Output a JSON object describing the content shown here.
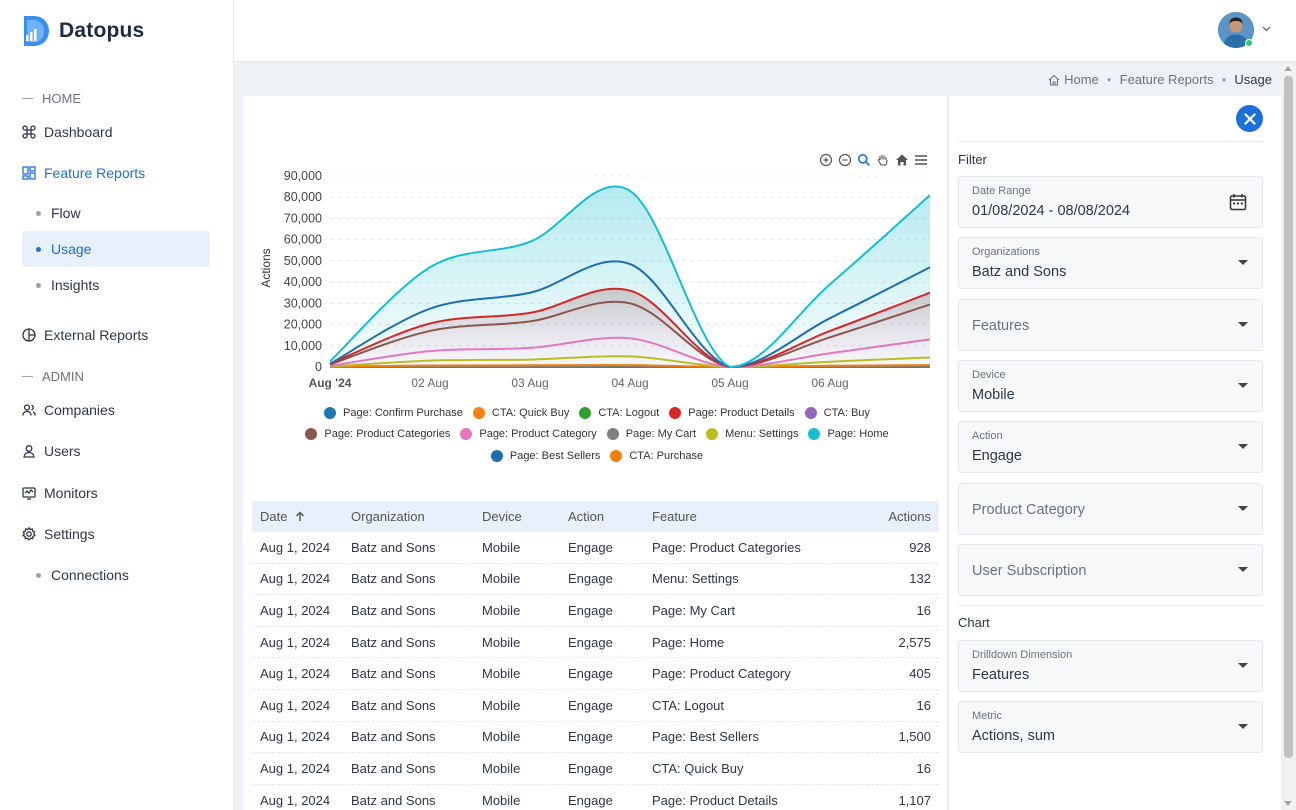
{
  "app": {
    "name": "Datopus"
  },
  "sidebar": {
    "home_section": "HOME",
    "admin_section": "ADMIN",
    "dashboard": "Dashboard",
    "feature_reports": "Feature Reports",
    "flow": "Flow",
    "usage": "Usage",
    "insights": "Insights",
    "external_reports": "External Reports",
    "companies": "Companies",
    "users": "Users",
    "monitors": "Monitors",
    "settings": "Settings",
    "connections": "Connections"
  },
  "breadcrumb": {
    "home": "Home",
    "section": "Feature Reports",
    "current": "Usage"
  },
  "chart_data": {
    "type": "area",
    "title": "",
    "xlabel": "",
    "ylabel": "Actions",
    "ylim": [
      0,
      90000
    ],
    "y_ticks": [
      "0",
      "10,000",
      "20,000",
      "30,000",
      "40,000",
      "50,000",
      "60,000",
      "70,000",
      "80,000",
      "90,000"
    ],
    "x_ticks": [
      "Aug '24",
      "02 Aug",
      "03 Aug",
      "04 Aug",
      "05 Aug",
      "06 Aug"
    ],
    "x": [
      0,
      1,
      2,
      3,
      4,
      5,
      6
    ],
    "series": [
      {
        "name": "Page: Confirm Purchase",
        "color": "#1f77b4",
        "values": [
          0,
          0,
          0,
          0,
          0,
          0,
          0
        ]
      },
      {
        "name": "CTA: Quick Buy",
        "color": "#ff7f0e",
        "values": [
          20,
          20,
          20,
          20,
          0,
          20,
          20
        ]
      },
      {
        "name": "CTA: Logout",
        "color": "#2ca02c",
        "values": [
          20,
          20,
          20,
          20,
          0,
          20,
          20
        ]
      },
      {
        "name": "Page: Product Details",
        "color": "#d62728",
        "values": [
          1500,
          20500,
          25500,
          36000,
          0,
          17000,
          35000
        ]
      },
      {
        "name": "CTA: Buy",
        "color": "#9467bd",
        "values": [
          0,
          0,
          0,
          0,
          0,
          0,
          0
        ]
      },
      {
        "name": "Page: Product Categories",
        "color": "#8c564b",
        "values": [
          1200,
          17000,
          21500,
          30000,
          0,
          14000,
          29500
        ]
      },
      {
        "name": "Page: Product Category",
        "color": "#e377c2",
        "values": [
          500,
          7500,
          9000,
          13500,
          0,
          6500,
          13000
        ]
      },
      {
        "name": "Page: My Cart",
        "color": "#7f7f7f",
        "values": [
          50,
          300,
          350,
          500,
          0,
          300,
          500
        ]
      },
      {
        "name": "Menu: Settings",
        "color": "#bcbd22",
        "values": [
          200,
          3000,
          3500,
          5000,
          0,
          2500,
          4500
        ]
      },
      {
        "name": "Page: Home",
        "color": "#17becf",
        "values": [
          2600,
          47000,
          59000,
          83000,
          0,
          39000,
          81000
        ]
      },
      {
        "name": "Page: Best Sellers",
        "color": "#1f6fb0",
        "values": [
          1500,
          27500,
          35000,
          48500,
          0,
          23000,
          47000
        ]
      },
      {
        "name": "CTA: Purchase",
        "color": "#f07f10",
        "values": [
          100,
          700,
          800,
          900,
          0,
          600,
          900
        ]
      }
    ]
  },
  "table": {
    "headers": {
      "date": "Date",
      "organization": "Organization",
      "device": "Device",
      "action": "Action",
      "feature": "Feature",
      "actions": "Actions"
    },
    "rows": [
      {
        "date": "Aug 1, 2024",
        "org": "Batz and Sons",
        "device": "Mobile",
        "action": "Engage",
        "feature": "Page: Product Categories",
        "actions": "928"
      },
      {
        "date": "Aug 1, 2024",
        "org": "Batz and Sons",
        "device": "Mobile",
        "action": "Engage",
        "feature": "Menu: Settings",
        "actions": "132"
      },
      {
        "date": "Aug 1, 2024",
        "org": "Batz and Sons",
        "device": "Mobile",
        "action": "Engage",
        "feature": "Page: My Cart",
        "actions": "16"
      },
      {
        "date": "Aug 1, 2024",
        "org": "Batz and Sons",
        "device": "Mobile",
        "action": "Engage",
        "feature": "Page: Home",
        "actions": "2,575"
      },
      {
        "date": "Aug 1, 2024",
        "org": "Batz and Sons",
        "device": "Mobile",
        "action": "Engage",
        "feature": "Page: Product Category",
        "actions": "405"
      },
      {
        "date": "Aug 1, 2024",
        "org": "Batz and Sons",
        "device": "Mobile",
        "action": "Engage",
        "feature": "CTA: Logout",
        "actions": "16"
      },
      {
        "date": "Aug 1, 2024",
        "org": "Batz and Sons",
        "device": "Mobile",
        "action": "Engage",
        "feature": "Page: Best Sellers",
        "actions": "1,500"
      },
      {
        "date": "Aug 1, 2024",
        "org": "Batz and Sons",
        "device": "Mobile",
        "action": "Engage",
        "feature": "CTA: Quick Buy",
        "actions": "16"
      },
      {
        "date": "Aug 1, 2024",
        "org": "Batz and Sons",
        "device": "Mobile",
        "action": "Engage",
        "feature": "Page: Product Details",
        "actions": "1,107"
      }
    ]
  },
  "filters": {
    "filter_title": "Filter",
    "date_range": {
      "label": "Date Range",
      "value": "01/08/2024 - 08/08/2024"
    },
    "organizations": {
      "label": "Organizations",
      "value": "Batz and Sons"
    },
    "features": {
      "placeholder": "Features"
    },
    "device": {
      "label": "Device",
      "value": "Mobile"
    },
    "action": {
      "label": "Action",
      "value": "Engage"
    },
    "product_category": {
      "placeholder": "Product Category"
    },
    "user_subscription": {
      "placeholder": "User Subscription"
    },
    "chart_title": "Chart",
    "drilldown": {
      "label": "Drilldown Dimension",
      "value": "Features"
    },
    "metric": {
      "label": "Metric",
      "value": "Actions, sum"
    }
  }
}
